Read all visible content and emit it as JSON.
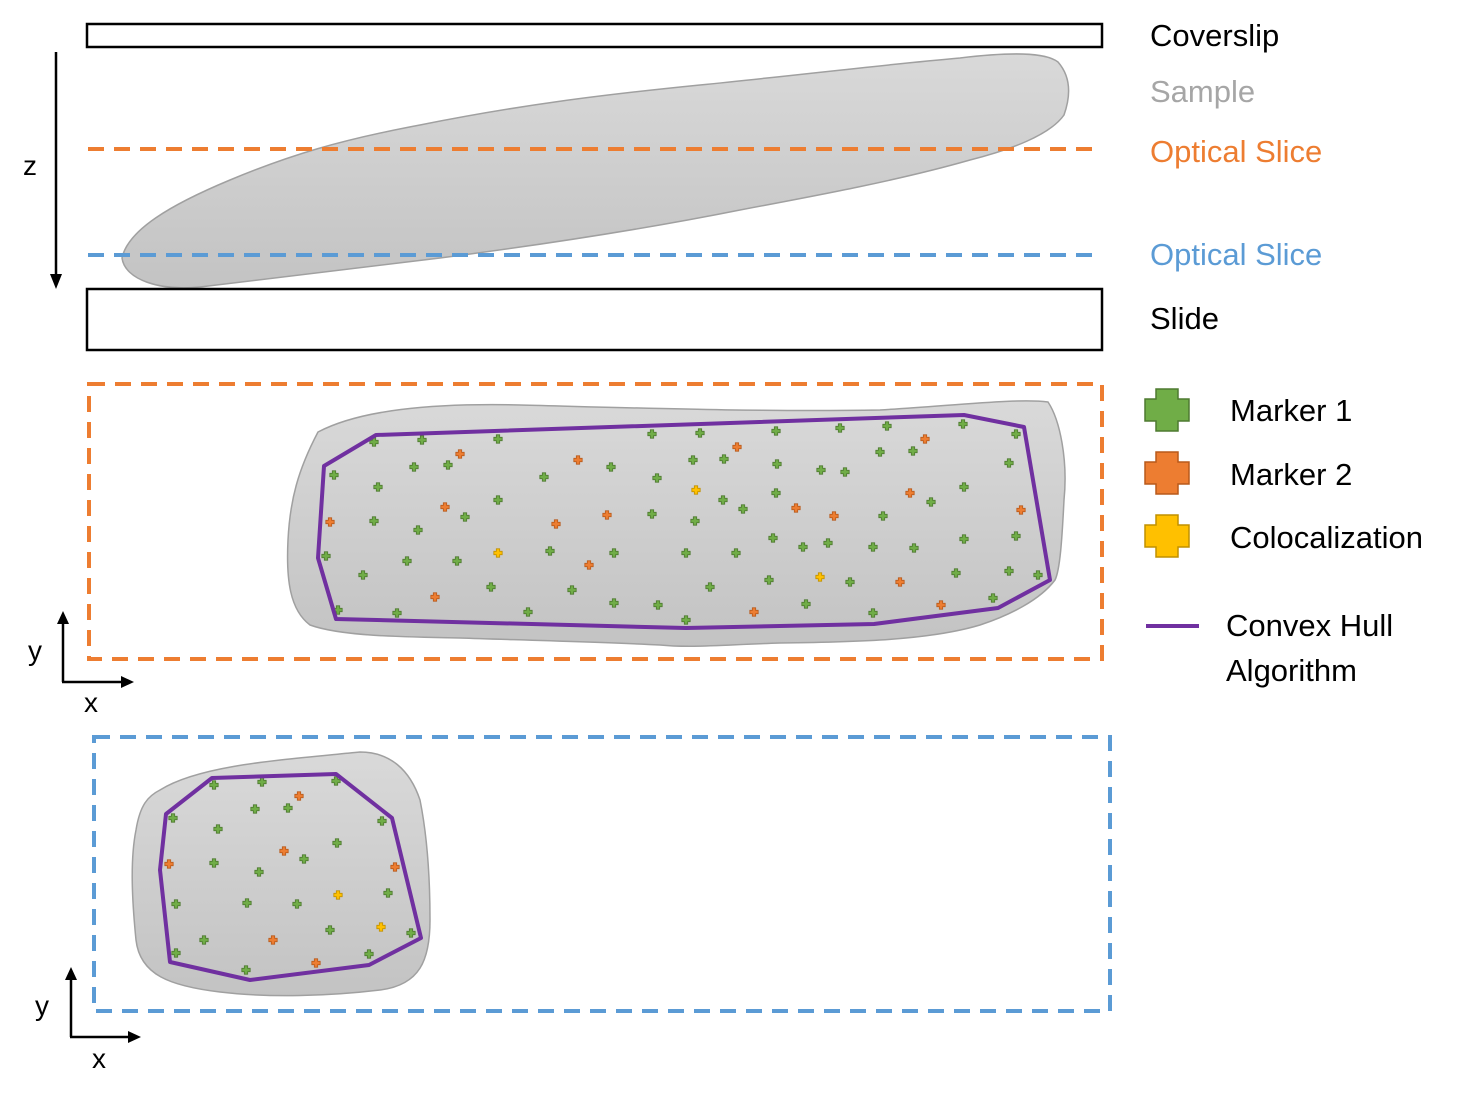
{
  "colors": {
    "orange": "#ED7D31",
    "blue": "#5B9BD5",
    "green": "#70AD47",
    "green_stroke": "#4E7A30",
    "orange_stroke": "#B85A1B",
    "yellow": "#FFC000",
    "yellow_stroke": "#C09000",
    "purple": "#7030A0",
    "sample_fill": "#CFCFCF",
    "sample_grey_text": "#A6A6A6"
  },
  "side_view": {
    "labels": {
      "coverslip": "Coverslip",
      "sample": "Sample",
      "optical_slice_1": "Optical Slice",
      "optical_slice_2": "Optical Slice",
      "slide": "Slide"
    },
    "z_axis": "z"
  },
  "top_view_axes": {
    "y": "y",
    "x": "x"
  },
  "bottom_view_axes": {
    "y": "y",
    "x": "x"
  },
  "legend": [
    {
      "label": "Marker 1",
      "icon": "green-cross-icon",
      "color": "#70AD47"
    },
    {
      "label": "Marker 2",
      "icon": "orange-cross-icon",
      "color": "#ED7D31"
    },
    {
      "label": "Colocalization",
      "icon": "yellow-cross-icon",
      "color": "#FFC000"
    }
  ],
  "legend_line": {
    "label_line1": "Convex Hull",
    "label_line2": "Algorithm",
    "icon": "purple-line-icon"
  }
}
